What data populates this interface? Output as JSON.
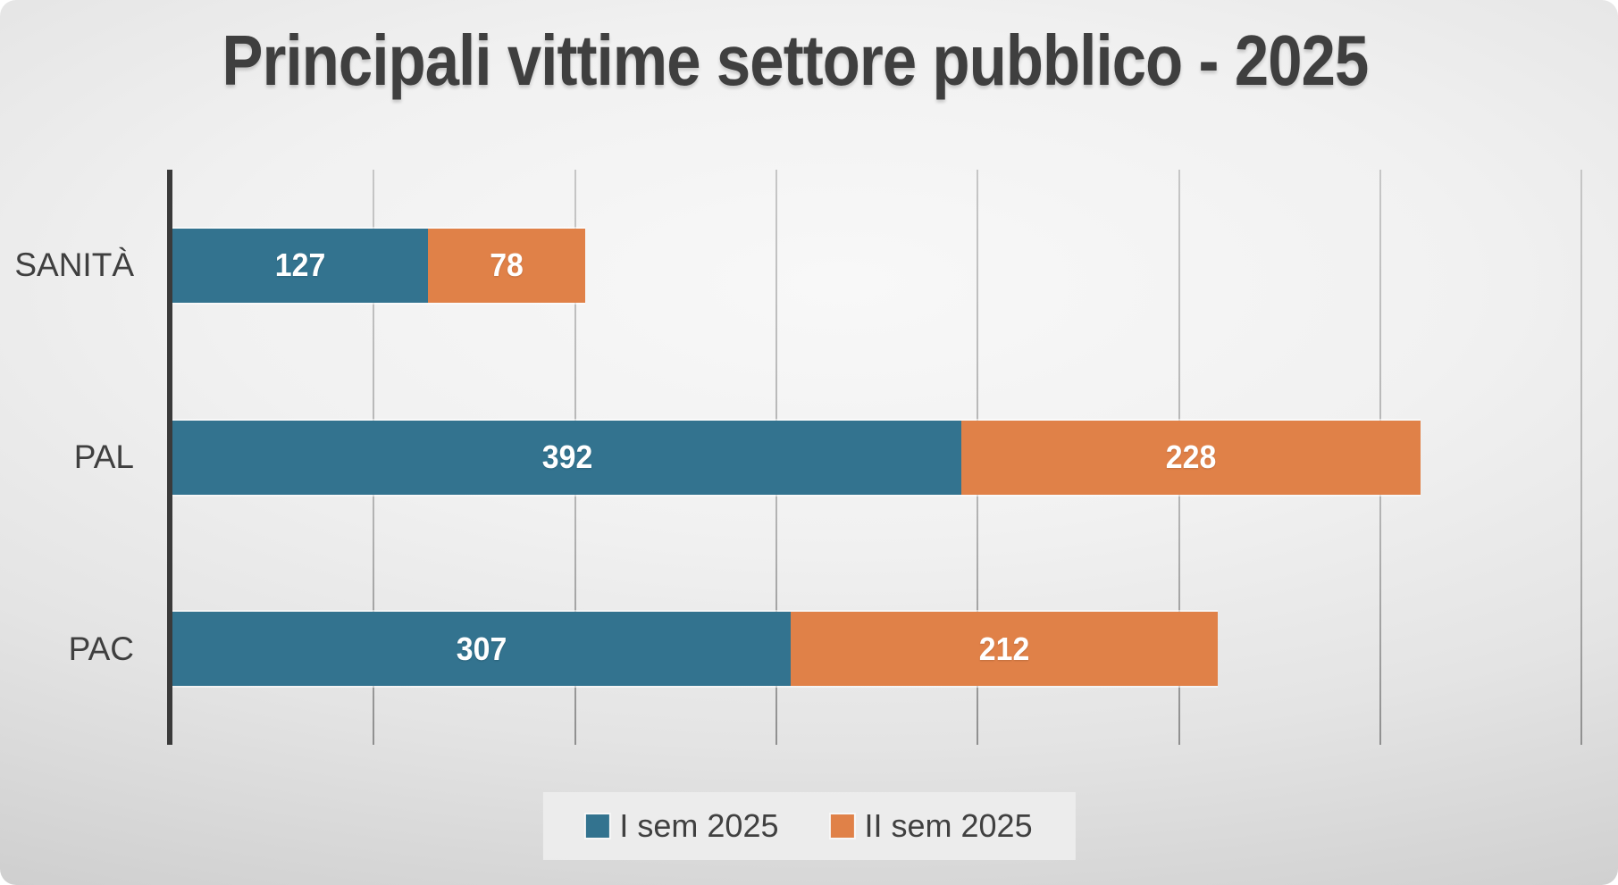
{
  "title": {
    "text": "Principali vittime settore pubblico - 2025",
    "color": "#3f3f3f"
  },
  "colors": {
    "series1": "#33738F",
    "series2": "#E08148",
    "axis_line": "#3a3a3a",
    "gridline": "#b3b3b3",
    "label_text": "#3f3f3f",
    "value_label_text": "#ffffff",
    "legend_background": "#eeeeee"
  },
  "chart_data": {
    "type": "bar",
    "orientation": "horizontal",
    "stacked": true,
    "title": "Principali vittime settore pubblico - 2025",
    "categories": [
      "SANITÀ",
      "PAL",
      "PAC"
    ],
    "series": [
      {
        "name": "I sem 2025",
        "color": "#33738F",
        "values": [
          127,
          392,
          307
        ]
      },
      {
        "name": "II sem 2025",
        "color": "#E08148",
        "values": [
          78,
          228,
          212
        ]
      }
    ],
    "totals": [
      205,
      620,
      519
    ],
    "xlim": [
      0,
      710
    ],
    "gridline_interval": 100,
    "grid": true,
    "x_tick_labels_visible": false,
    "value_labels": "inside-center",
    "legend_position": "bottom-center"
  }
}
